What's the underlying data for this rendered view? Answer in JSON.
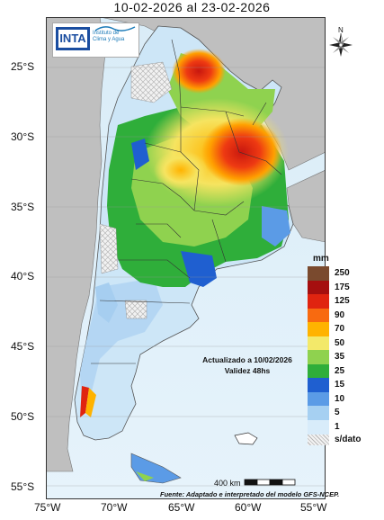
{
  "title": "10-02-2026 al 23-02-2026",
  "logo": {
    "inta": "INTA",
    "institute_line1": "Instituto de",
    "institute_line2": "Clima y Agua"
  },
  "compass": {
    "north_label": "N"
  },
  "latitude_labels": [
    "25°S",
    "30°S",
    "35°S",
    "40°S",
    "45°S",
    "50°S",
    "55°S"
  ],
  "longitude_labels": [
    "75°W",
    "70°W",
    "65°W",
    "60°W",
    "55°W"
  ],
  "legend": {
    "unit": "mm",
    "classes": [
      {
        "label": "250",
        "color": "#7a4a2e"
      },
      {
        "label": "175",
        "color": "#a50f0f"
      },
      {
        "label": "125",
        "color": "#e02410"
      },
      {
        "label": "90",
        "color": "#f86a10"
      },
      {
        "label": "70",
        "color": "#ffb300"
      },
      {
        "label": "50",
        "color": "#f3e96a"
      },
      {
        "label": "35",
        "color": "#8fd24f"
      },
      {
        "label": "25",
        "color": "#2fae3a"
      },
      {
        "label": "15",
        "color": "#1f5fd0"
      },
      {
        "label": "10",
        "color": "#5b9be6"
      },
      {
        "label": "5",
        "color": "#a6d0f2"
      },
      {
        "label": "1",
        "color": "#d8ecfa"
      }
    ],
    "no_data_label": "s/dato"
  },
  "updated_line1": "Actualizado a 10/02/2026",
  "updated_line2": "Validez 48hs",
  "scale_label": "400 km",
  "source": "Fuente: Adaptado e interpretado del modelo GFS-NCEP."
}
